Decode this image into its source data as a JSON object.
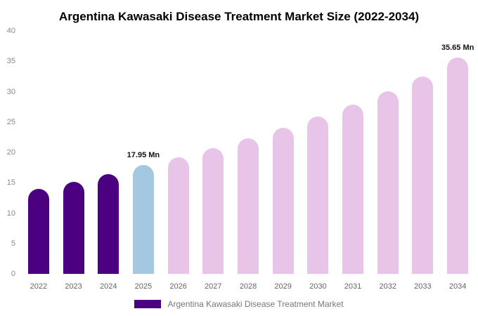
{
  "title": "Argentina Kawasaki Disease Treatment Market Size (2022-2034)",
  "legend": {
    "label": "Argentina Kawasaki Disease Treatment Market",
    "swatch_color": "#4B0082"
  },
  "chart_data": {
    "type": "bar",
    "title": "Argentina Kawasaki Disease Treatment Market Size (2022-2034)",
    "unit": "Mn",
    "categories": [
      "2022",
      "2023",
      "2024",
      "2025",
      "2026",
      "2027",
      "2028",
      "2029",
      "2030",
      "2031",
      "2032",
      "2033",
      "2034"
    ],
    "values": [
      14.0,
      15.2,
      16.4,
      17.95,
      19.2,
      20.7,
      22.3,
      24.0,
      25.9,
      27.9,
      30.1,
      32.5,
      35.65
    ],
    "bar_colors": [
      "#4B0082",
      "#4B0082",
      "#4B0082",
      "#A4C8E1",
      "#E8C5E8",
      "#E8C5E8",
      "#E8C5E8",
      "#E8C5E8",
      "#E8C5E8",
      "#E8C5E8",
      "#E8C5E8",
      "#E8C5E8",
      "#E8C5E8"
    ],
    "annotations": [
      {
        "category": "2025",
        "text": "17.95 Mn"
      },
      {
        "category": "2034",
        "text": "35.65 Mn"
      }
    ],
    "xlabel": "",
    "ylabel": "",
    "ylim": [
      0,
      40
    ],
    "yticks": [
      0,
      5,
      10,
      15,
      20,
      25,
      30,
      35,
      40
    ],
    "grid": false,
    "legend_position": "bottom"
  }
}
